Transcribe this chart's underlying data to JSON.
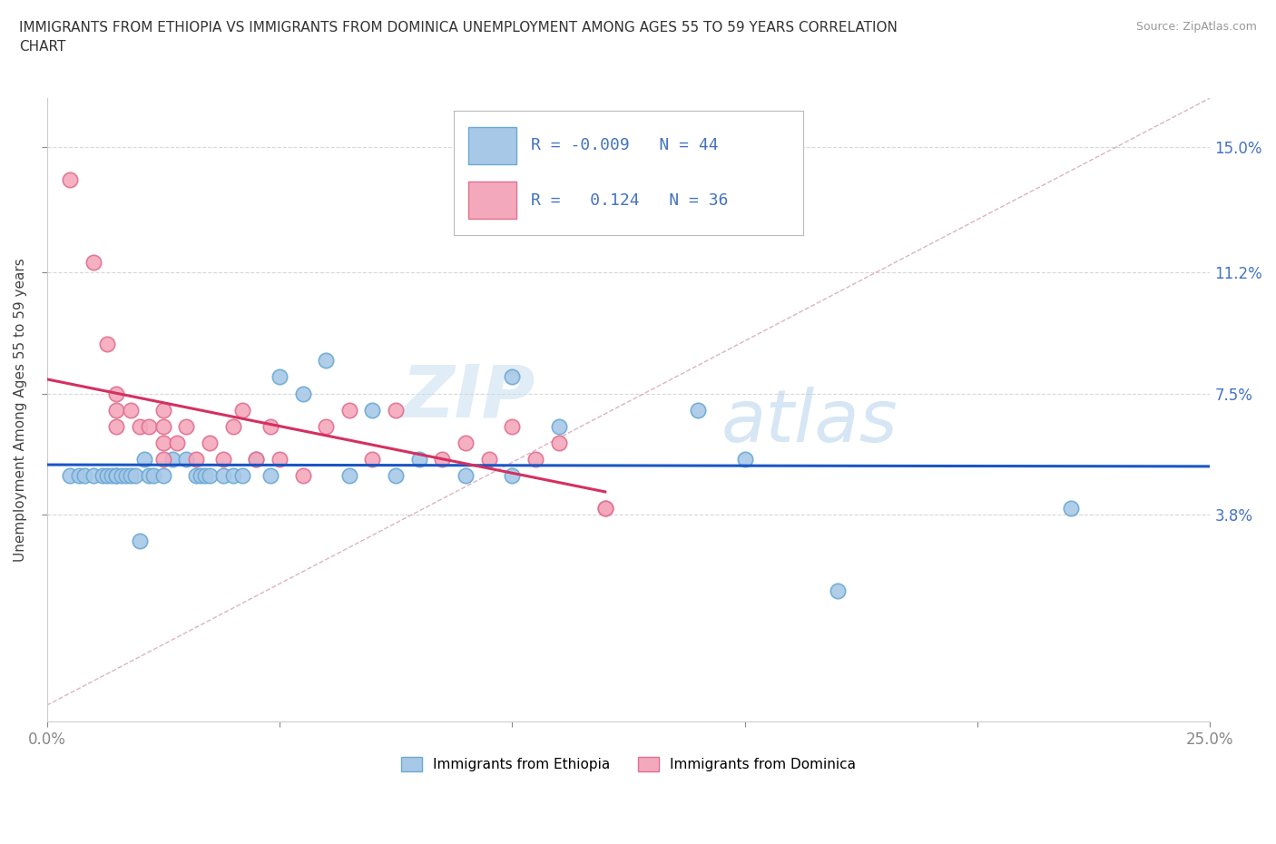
{
  "title": "IMMIGRANTS FROM ETHIOPIA VS IMMIGRANTS FROM DOMINICA UNEMPLOYMENT AMONG AGES 55 TO 59 YEARS CORRELATION\nCHART",
  "source_text": "Source: ZipAtlas.com",
  "ylabel": "Unemployment Among Ages 55 to 59 years",
  "xlim": [
    0.0,
    0.25
  ],
  "ylim": [
    -0.025,
    0.165
  ],
  "xtick_positions": [
    0.0,
    0.05,
    0.1,
    0.15,
    0.2,
    0.25
  ],
  "xticklabels": [
    "0.0%",
    "",
    "",
    "",
    "",
    "25.0%"
  ],
  "ytick_positions": [
    0.038,
    0.075,
    0.112,
    0.15
  ],
  "right_ytick_labels": [
    "3.8%",
    "7.5%",
    "11.2%",
    "15.0%"
  ],
  "ethiopia_color": "#a8c8e8",
  "dominica_color": "#f4a8bc",
  "ethiopia_edge": "#6aaad4",
  "dominica_edge": "#e07090",
  "trend_blue_color": "#1a56c4",
  "trend_pink_color": "#d43060",
  "ref_line_color": "#c8a0b8",
  "legend_R1": "-0.009",
  "legend_N1": "44",
  "legend_R2": "0.124",
  "legend_N2": "36",
  "ethiopia_x": [
    0.005,
    0.007,
    0.008,
    0.01,
    0.012,
    0.013,
    0.014,
    0.015,
    0.015,
    0.016,
    0.017,
    0.018,
    0.019,
    0.02,
    0.021,
    0.022,
    0.023,
    0.025,
    0.027,
    0.03,
    0.032,
    0.033,
    0.034,
    0.035,
    0.038,
    0.04,
    0.042,
    0.045,
    0.048,
    0.05,
    0.055,
    0.06,
    0.065,
    0.07,
    0.075,
    0.08,
    0.09,
    0.1,
    0.1,
    0.11,
    0.14,
    0.15,
    0.17,
    0.22
  ],
  "ethiopia_y": [
    0.05,
    0.05,
    0.05,
    0.05,
    0.05,
    0.05,
    0.05,
    0.05,
    0.05,
    0.05,
    0.05,
    0.05,
    0.05,
    0.03,
    0.055,
    0.05,
    0.05,
    0.05,
    0.055,
    0.055,
    0.05,
    0.05,
    0.05,
    0.05,
    0.05,
    0.05,
    0.05,
    0.055,
    0.05,
    0.08,
    0.075,
    0.085,
    0.05,
    0.07,
    0.05,
    0.055,
    0.05,
    0.05,
    0.08,
    0.065,
    0.07,
    0.055,
    0.015,
    0.04
  ],
  "dominica_x": [
    0.005,
    0.01,
    0.013,
    0.015,
    0.015,
    0.015,
    0.018,
    0.02,
    0.022,
    0.025,
    0.025,
    0.025,
    0.025,
    0.028,
    0.03,
    0.032,
    0.035,
    0.038,
    0.04,
    0.042,
    0.045,
    0.048,
    0.05,
    0.055,
    0.06,
    0.065,
    0.07,
    0.075,
    0.085,
    0.09,
    0.095,
    0.1,
    0.105,
    0.11,
    0.12,
    0.12
  ],
  "dominica_y": [
    0.14,
    0.115,
    0.09,
    0.075,
    0.07,
    0.065,
    0.07,
    0.065,
    0.065,
    0.07,
    0.065,
    0.06,
    0.055,
    0.06,
    0.065,
    0.055,
    0.06,
    0.055,
    0.065,
    0.07,
    0.055,
    0.065,
    0.055,
    0.05,
    0.065,
    0.07,
    0.055,
    0.07,
    0.055,
    0.06,
    0.055,
    0.065,
    0.055,
    0.06,
    0.04,
    0.04
  ],
  "watermark_zip": "ZIP",
  "watermark_atlas": "atlas",
  "background_color": "#ffffff",
  "grid_color": "#d8d8d8"
}
